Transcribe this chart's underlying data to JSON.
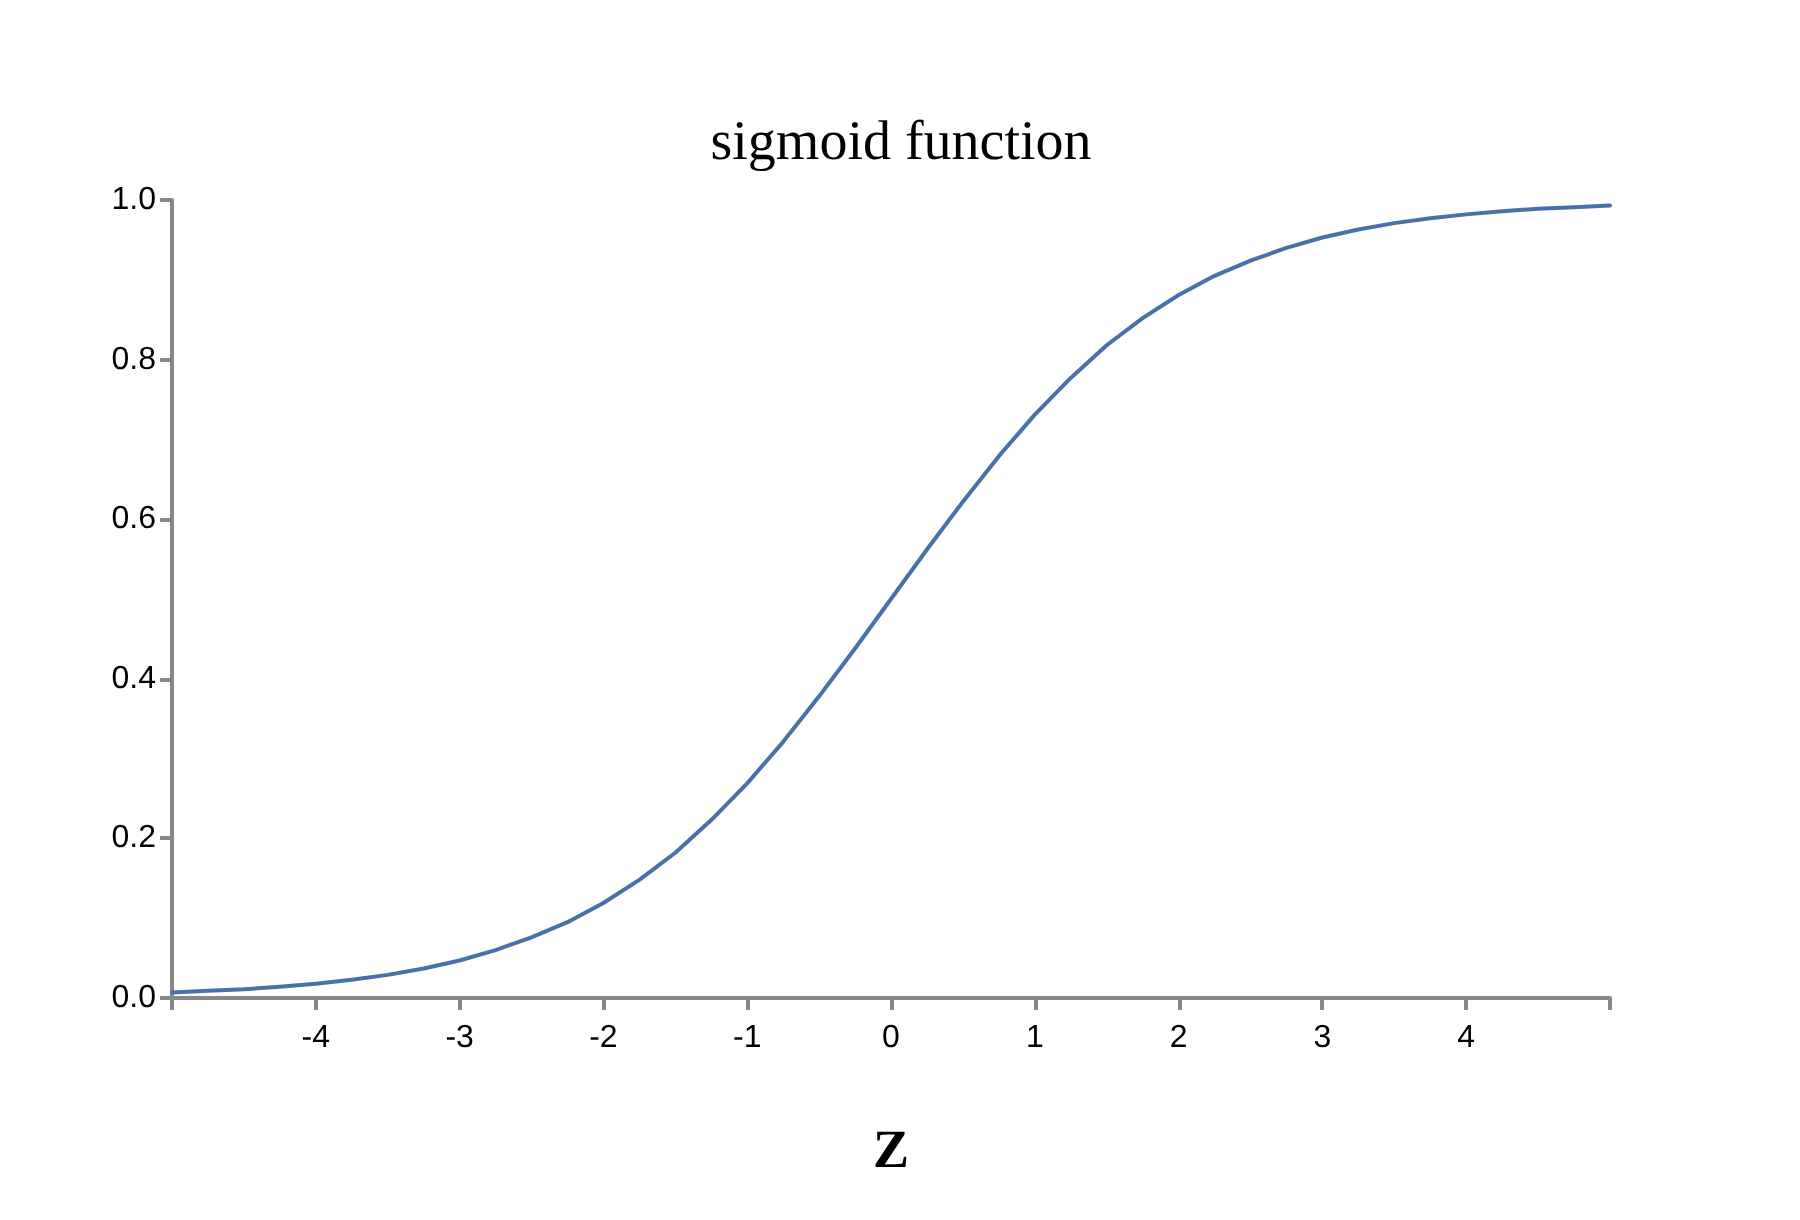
{
  "chart_data": {
    "type": "line",
    "title": "sigmoid function",
    "xlabel": "Z",
    "x": [
      -5,
      -4.75,
      -4.5,
      -4.25,
      -4,
      -3.75,
      -3.5,
      -3.25,
      -3,
      -2.75,
      -2.5,
      -2.25,
      -2,
      -1.75,
      -1.5,
      -1.25,
      -1,
      -0.75,
      -0.5,
      -0.25,
      0,
      0.25,
      0.5,
      0.75,
      1,
      1.25,
      1.5,
      1.75,
      2,
      2.25,
      2.5,
      2.75,
      3,
      3.25,
      3.5,
      3.75,
      4,
      4.25,
      4.5,
      4.75,
      5
    ],
    "values": [
      0.007,
      0.009,
      0.011,
      0.014,
      0.018,
      0.023,
      0.029,
      0.037,
      0.047,
      0.06,
      0.076,
      0.095,
      0.119,
      0.148,
      0.182,
      0.223,
      0.269,
      0.321,
      0.378,
      0.438,
      0.5,
      0.562,
      0.622,
      0.679,
      0.731,
      0.777,
      0.818,
      0.852,
      0.881,
      0.905,
      0.924,
      0.94,
      0.953,
      0.963,
      0.971,
      0.977,
      0.982,
      0.986,
      0.989,
      0.991,
      0.993
    ],
    "color": "#4672a8",
    "xlim": [
      -5,
      5
    ],
    "xticks": [
      {
        "value": -5,
        "label": null
      },
      -4,
      -3,
      -2,
      -1,
      0,
      1,
      2,
      3,
      4,
      {
        "value": 5,
        "label": null
      }
    ],
    "ylim": [
      0,
      1
    ],
    "yticks": [
      {
        "value": 0,
        "label": "0.0"
      },
      0.2,
      0.4,
      0.6,
      0.8,
      {
        "value": 1,
        "label": "1.0"
      }
    ],
    "marker": "none",
    "line_style": "solid"
  }
}
